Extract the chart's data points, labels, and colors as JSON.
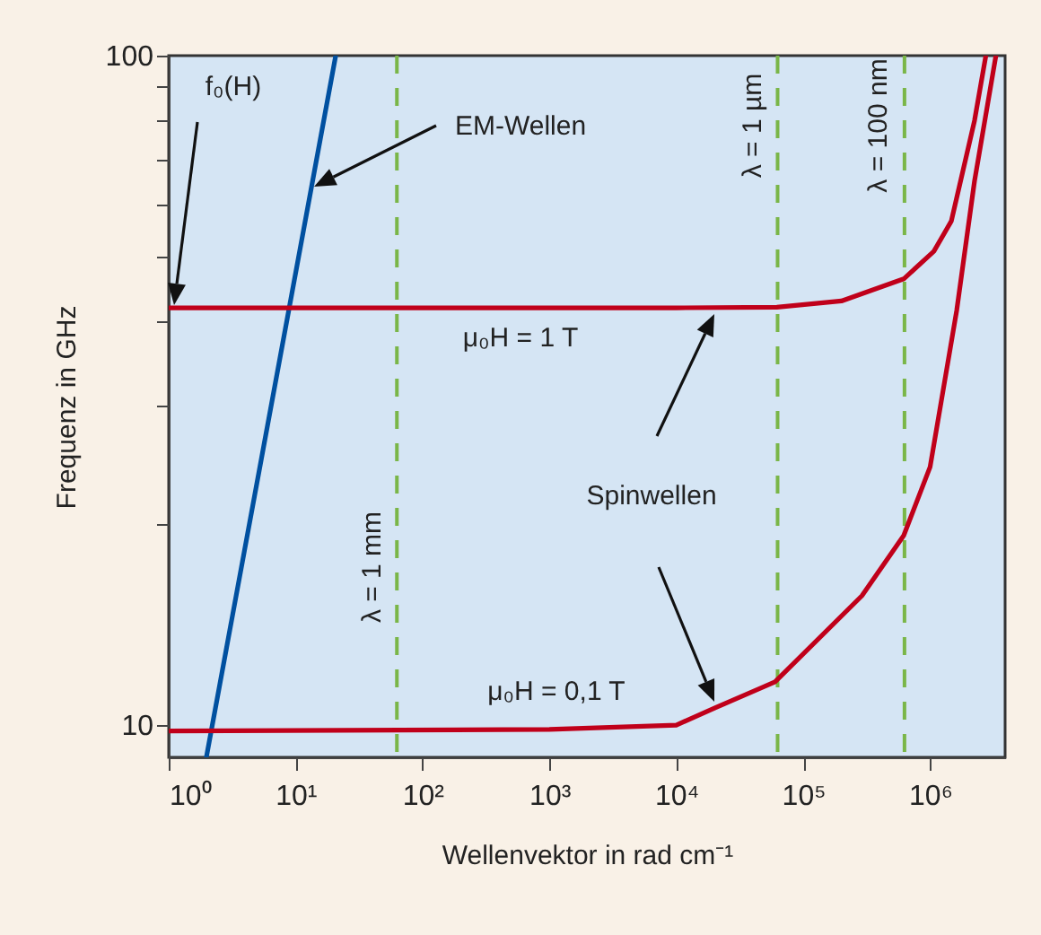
{
  "chart_data": {
    "type": "line",
    "xlabel": "Wellenvektor in rad cm⁻¹",
    "ylabel": "Frequenz in GHz",
    "log": "xy",
    "xlim": [
      1,
      3900000
    ],
    "ylim": [
      8.95,
      100
    ],
    "xticks": [
      {
        "value": 1,
        "label": "10⁰"
      },
      {
        "value": 10,
        "label": "10¹"
      },
      {
        "value": 100,
        "label": "10²"
      },
      {
        "value": 1000,
        "label": "10³"
      },
      {
        "value": 10000,
        "label": "10⁴"
      },
      {
        "value": 100000,
        "label": "10⁵"
      },
      {
        "value": 1000000,
        "label": "10⁶"
      }
    ],
    "yticks": [
      10,
      {
        "value": 20,
        "label": null
      },
      {
        "value": 30,
        "label": null
      },
      {
        "value": 40,
        "label": null
      },
      {
        "value": 50,
        "label": null
      },
      {
        "value": 60,
        "label": null
      },
      {
        "value": 70,
        "label": null
      },
      {
        "value": 80,
        "label": null
      },
      {
        "value": 90,
        "label": null
      },
      100
    ],
    "series": [
      {
        "color": "#0050a0",
        "x": [
          1.98,
          20.7
        ],
        "values": [
          8.95,
          100
        ]
      },
      {
        "color": "#c0001a",
        "x": [
          1,
          1000,
          10000,
          62000,
          200000,
          620000,
          1070000,
          1470000,
          2240000,
          2750000
        ],
        "values": [
          42,
          42,
          42,
          42.1,
          43,
          46.4,
          51,
          56.6,
          80,
          100
        ]
      },
      {
        "color": "#c0001a",
        "x": [
          1,
          1000,
          10000,
          20000,
          60000,
          290000,
          620000,
          1000000,
          1620000,
          2240000,
          3300000
        ],
        "values": [
          9.8,
          9.85,
          10,
          10.6,
          11.6,
          15.6,
          19.2,
          24.3,
          41.6,
          65,
          100
        ]
      }
    ],
    "ref_lines": [
      {
        "axis": "x",
        "value": 62.83,
        "color": "#7ab648",
        "line_style": "dashed"
      },
      {
        "axis": "x",
        "value": 62832,
        "color": "#7ab648",
        "line_style": "dashed"
      },
      {
        "axis": "x",
        "value": 628319,
        "color": "#7ab648",
        "line_style": "dashed"
      }
    ],
    "annotations": [
      "f₀(H)",
      "EM-Wellen",
      "μ₀H = 1 T",
      "Spinwellen",
      "μ₀H = 0,1 T",
      "λ = 1 mm",
      "λ = 1 µm",
      "λ = 100 nm"
    ]
  }
}
